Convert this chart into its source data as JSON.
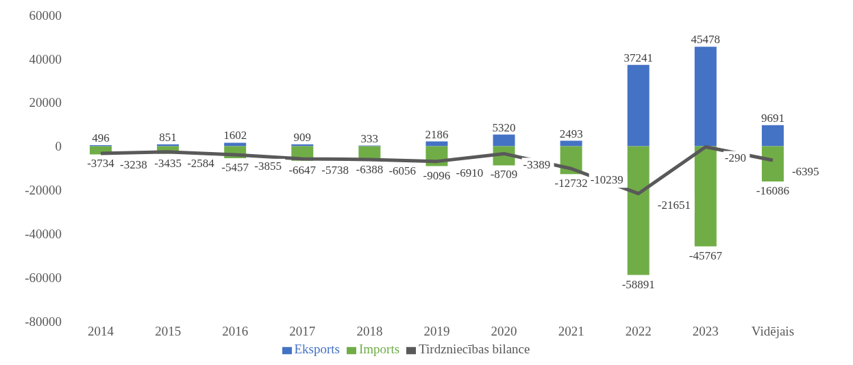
{
  "chart_data": {
    "type": "bar",
    "stacked": true,
    "categories": [
      "2014",
      "2015",
      "2016",
      "2017",
      "2018",
      "2019",
      "2020",
      "2021",
      "2022",
      "2023",
      "Vidējais"
    ],
    "series": [
      {
        "name": "Eksports",
        "color": "#4472c4",
        "values": [
          496,
          851,
          1602,
          909,
          333,
          2186,
          5320,
          2493,
          37241,
          45478,
          9691
        ]
      },
      {
        "name": "Imports",
        "color": "#70ad47",
        "values": [
          -3734,
          -3435,
          -5457,
          -6647,
          -6388,
          -9096,
          -8709,
          -12732,
          -58891,
          -45767,
          -16086
        ]
      },
      {
        "name": "Tirdzniecības bilance",
        "type": "line",
        "color": "#595959",
        "values": [
          -3238,
          -2584,
          -3855,
          -5738,
          -6056,
          -6910,
          -3389,
          -10239,
          -21651,
          -290,
          -6395
        ]
      }
    ],
    "ylim": [
      -80000,
      60000
    ],
    "yticks": [
      -80000,
      -60000,
      -40000,
      -20000,
      0,
      20000,
      40000,
      60000
    ],
    "grid": false,
    "legend": "bottom",
    "data_labels": true,
    "marker": "none"
  }
}
